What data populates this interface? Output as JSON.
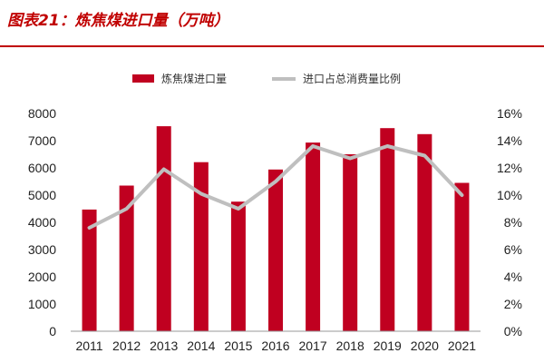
{
  "title": "图表21：炼焦煤进口量（万吨）",
  "chart_data": {
    "type": "bar",
    "categories": [
      "2011",
      "2012",
      "2013",
      "2014",
      "2015",
      "2016",
      "2017",
      "2018",
      "2019",
      "2020",
      "2021"
    ],
    "series": [
      {
        "name": "炼焦煤进口量",
        "type": "bar",
        "axis": "left",
        "color": "#c00020",
        "values": [
          4470,
          5350,
          7530,
          6210,
          4760,
          5940,
          6930,
          6500,
          7460,
          7240,
          5450
        ]
      },
      {
        "name": "进口占总消费量比例",
        "type": "line",
        "axis": "right",
        "color": "#bfbfbf",
        "values": [
          7.6,
          9.0,
          11.9,
          10.1,
          9.0,
          11.0,
          13.6,
          12.7,
          13.6,
          12.9,
          10.0
        ]
      }
    ],
    "left_axis": {
      "ylim": [
        0,
        8000
      ],
      "ticks": [
        "0",
        "1000",
        "2000",
        "3000",
        "4000",
        "5000",
        "6000",
        "7000",
        "8000"
      ]
    },
    "right_axis": {
      "ylim": [
        0,
        16
      ],
      "ticks": [
        "0%",
        "2%",
        "4%",
        "6%",
        "8%",
        "10%",
        "12%",
        "14%",
        "16%"
      ]
    },
    "legend_position": "top-center",
    "grid": false
  }
}
